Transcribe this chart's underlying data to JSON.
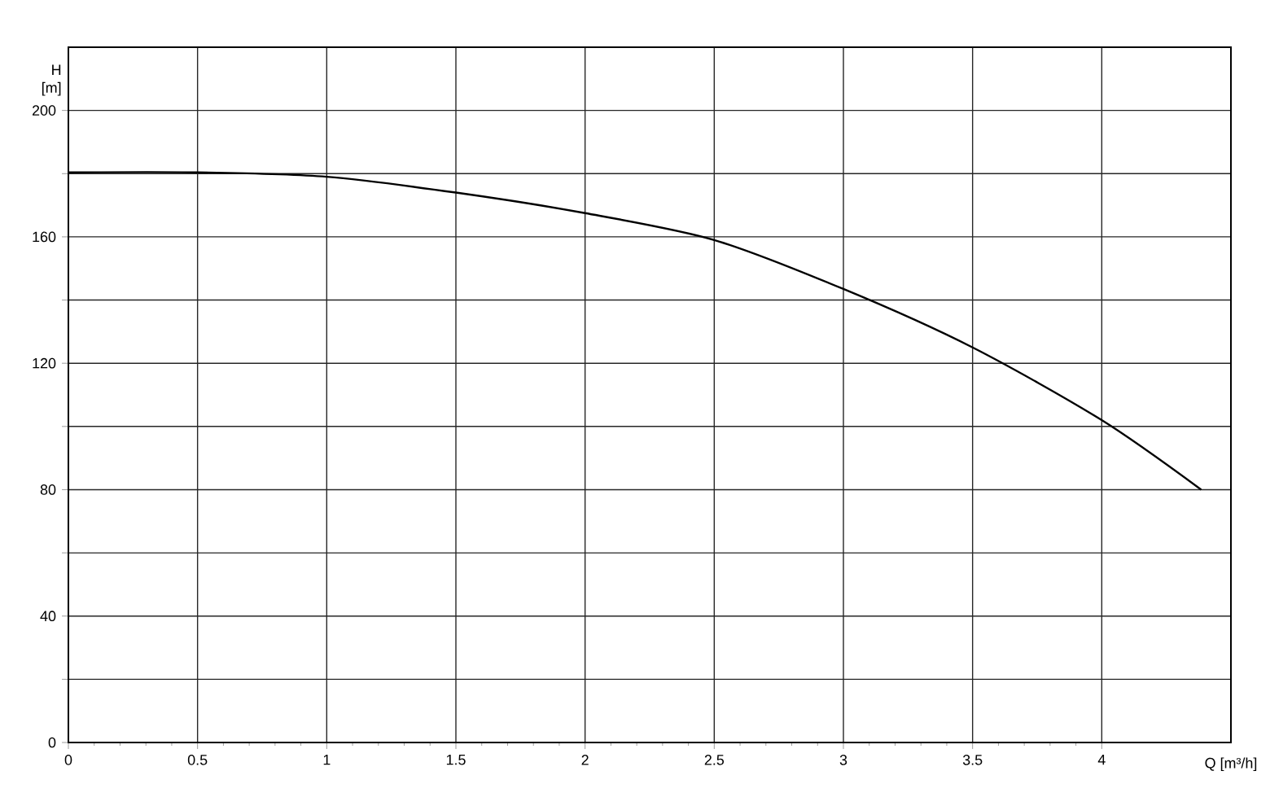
{
  "chart_data": {
    "type": "line",
    "xlabel": "Q [m³/h]",
    "ylabel": "H [m]",
    "x": [
      0,
      0.5,
      1,
      1.5,
      2,
      2.5,
      3,
      3.5,
      4,
      4.385
    ],
    "series": [
      {
        "color": "#000000",
        "values": [
          180.4,
          180.4,
          179,
          174,
          167.5,
          159,
          143.5,
          125,
          102,
          80
        ]
      }
    ],
    "xlim": [
      0,
      4.5
    ],
    "ylim": [
      0,
      220
    ],
    "xticks": [
      0,
      0.5,
      1,
      1.5,
      2,
      2.5,
      3,
      3.5,
      4
    ],
    "yticks": [
      0,
      {
        "value": 20,
        "label": null
      },
      40,
      {
        "value": 60,
        "label": null
      },
      80,
      {
        "value": 100,
        "label": null
      },
      120,
      {
        "value": 140,
        "label": null
      },
      160,
      {
        "value": 180,
        "label": null
      },
      200
    ],
    "grid": true,
    "marker": "none",
    "line_style": "solid"
  }
}
